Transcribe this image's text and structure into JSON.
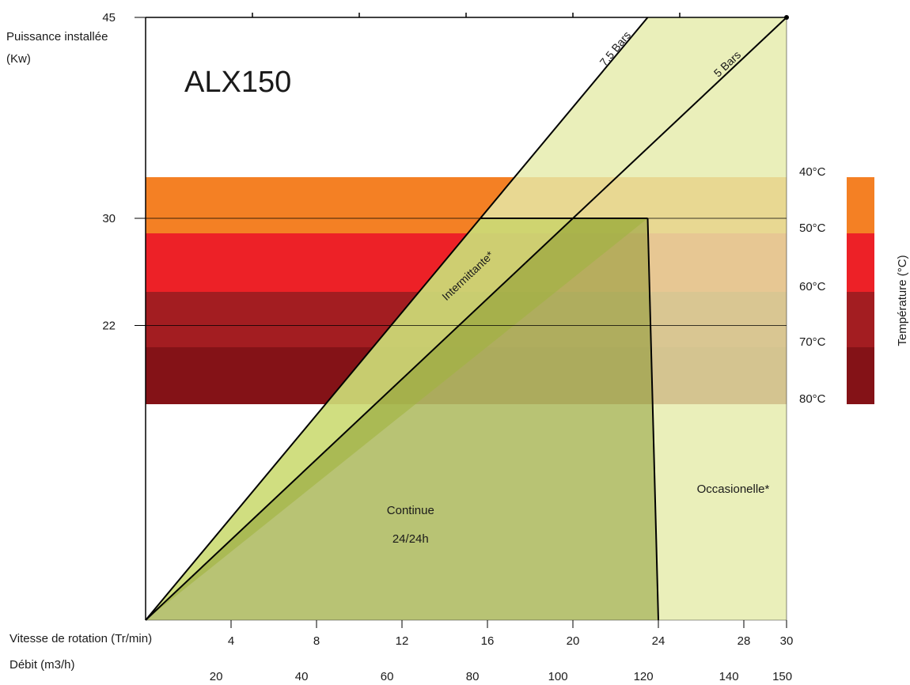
{
  "chart_data": {
    "type": "area",
    "title": "ALX150",
    "y_axis_label_line1": "Puissance installée",
    "y_axis_label_line2": "(Kw)",
    "y_ticks": [
      {
        "value": 45,
        "label": "45"
      },
      {
        "value": 30,
        "label": "30"
      },
      {
        "value": 22,
        "label": "22"
      }
    ],
    "x_axis_speed_label": "Vitesse de rotation (Tr/min)",
    "x_axis_speed_ticks": [
      {
        "value": 4,
        "label": "4"
      },
      {
        "value": 8,
        "label": "8"
      },
      {
        "value": 12,
        "label": "12"
      },
      {
        "value": 16,
        "label": "16"
      },
      {
        "value": 20,
        "label": "20"
      },
      {
        "value": 24,
        "label": "24"
      },
      {
        "value": 28,
        "label": "28"
      },
      {
        "value": 30,
        "label": "30"
      }
    ],
    "x_axis_flow_label": "Débit (m3/h)",
    "x_axis_flow_ticks": [
      {
        "speed": 3.3,
        "label": "20"
      },
      {
        "speed": 7.3,
        "label": "40"
      },
      {
        "speed": 11.3,
        "label": "60"
      },
      {
        "speed": 15.3,
        "label": "80"
      },
      {
        "speed": 19.3,
        "label": "100"
      },
      {
        "speed": 23.3,
        "label": "120"
      },
      {
        "speed": 27.3,
        "label": "140"
      },
      {
        "speed": 29.8,
        "label": "150"
      }
    ],
    "x_range": [
      0,
      30
    ],
    "y_range": [
      0,
      45
    ],
    "pressure_lines": [
      {
        "name": "7,5 Bars",
        "from": [
          0,
          0
        ],
        "to": [
          23.5,
          45
        ]
      },
      {
        "name": "5 Bars",
        "from": [
          0,
          0
        ],
        "to": [
          30,
          45
        ]
      }
    ],
    "regions": [
      {
        "label_lines": [
          "Continue",
          "24/24h"
        ],
        "label_at": [
          12.4,
          7.9
        ]
      },
      {
        "label": "Intermittante*"
      },
      {
        "label": "Occasionelle*",
        "label_at": [
          27.5,
          9.5
        ]
      }
    ],
    "limits": {
      "max_power_kw": 30,
      "max_speed_at_max_power": 23.5,
      "max_speed_at_zero_power": 24
    },
    "temperature_scale": {
      "title": "Température (°C)",
      "bands": [
        {
          "label": "40°C",
          "color": "#F48024"
        },
        {
          "label": "50°C",
          "color": "#ED2127"
        },
        {
          "label": "60°C",
          "color": "#A31D21"
        },
        {
          "label": "70°C",
          "color": "#841217"
        },
        {
          "label": "80°C",
          "color": "#841217"
        }
      ]
    },
    "grid": false,
    "colors": {
      "light_zone": "#E5EBAB",
      "medium_zone": "#BED25A",
      "dark_zone": "#7C8E1E"
    }
  }
}
